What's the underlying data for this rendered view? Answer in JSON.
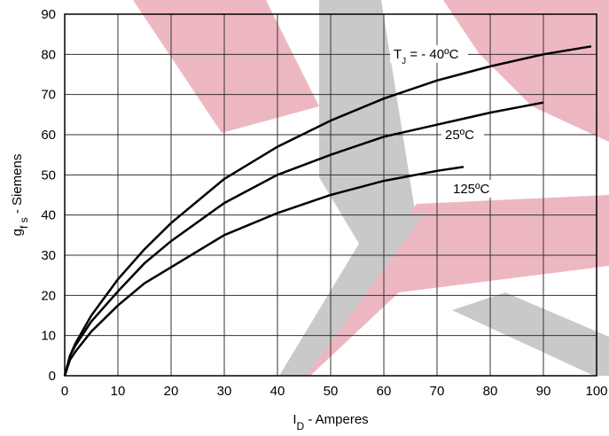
{
  "chart_data": {
    "type": "line",
    "x_label": {
      "main": "I",
      "sub": "D",
      "rest": " - Amperes"
    },
    "y_label": {
      "main": "g",
      "sub": "f s",
      "rest": " - Siemens"
    },
    "xlim": [
      0,
      100
    ],
    "xticks": [
      0,
      10,
      20,
      30,
      40,
      50,
      60,
      70,
      80,
      90,
      100
    ],
    "ylim": [
      0,
      90
    ],
    "yticks": [
      0,
      10,
      20,
      30,
      40,
      50,
      60,
      70,
      80,
      90
    ],
    "grid": true,
    "series": [
      {
        "label_parts": [
          "T",
          "J",
          " = - 40ºC"
        ],
        "color": "#000000",
        "x": [
          0,
          1,
          2,
          5,
          10,
          15,
          20,
          30,
          40,
          50,
          60,
          70,
          80,
          90,
          99
        ],
        "values": [
          0,
          5,
          8,
          15,
          24,
          31.5,
          38,
          49,
          57,
          63.5,
          69,
          73.5,
          77,
          80,
          82
        ]
      },
      {
        "label_parts": [
          "25ºC"
        ],
        "color": "#000000",
        "x": [
          0,
          1,
          2,
          5,
          10,
          15,
          20,
          30,
          40,
          50,
          60,
          70,
          80,
          90
        ],
        "values": [
          0,
          5,
          7.5,
          13.5,
          21,
          28,
          33.5,
          43,
          50,
          55,
          59.5,
          62.5,
          65.5,
          68
        ]
      },
      {
        "label_parts": [
          "125ºC"
        ],
        "color": "#000000",
        "x": [
          0,
          1,
          2,
          5,
          10,
          15,
          20,
          30,
          40,
          50,
          60,
          70,
          75
        ],
        "values": [
          0,
          4,
          6,
          11,
          17.5,
          23,
          27,
          35,
          40.5,
          45,
          48.5,
          51,
          52
        ]
      }
    ]
  }
}
